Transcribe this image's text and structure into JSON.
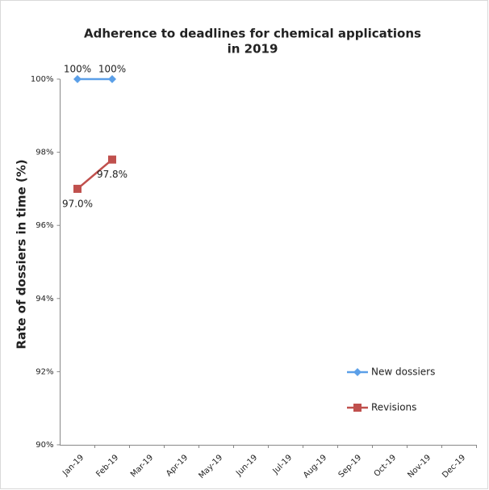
{
  "chart_data": {
    "type": "line",
    "title": [
      "Adherence to deadlines for chemical applications",
      "in 2019"
    ],
    "y_label": "Rate of dossiers in time (%)",
    "categories": [
      "Jan-19",
      "Feb-19",
      "Mar-19",
      "Apr-19",
      "May-19",
      "Jun-19",
      "Jul-19",
      "Aug-19",
      "Sep-19",
      "Oct-19",
      "Nov-19",
      "Dec-19"
    ],
    "series": [
      {
        "name": "New dossiers",
        "color": "#5b9fe8",
        "marker": "diamond",
        "values": [
          100,
          100,
          null,
          null,
          null,
          null,
          null,
          null,
          null,
          null,
          null,
          null
        ],
        "value_labels": [
          "100%",
          "100%",
          null,
          null,
          null,
          null,
          null,
          null,
          null,
          null,
          null,
          null
        ]
      },
      {
        "name": "Revisions",
        "color": "#c0504d",
        "marker": "square",
        "values": [
          97.0,
          97.8,
          null,
          null,
          null,
          null,
          null,
          null,
          null,
          null,
          null,
          null
        ],
        "value_labels": [
          "97.0%",
          "97.8%",
          null,
          null,
          null,
          null,
          null,
          null,
          null,
          null,
          null,
          null
        ]
      }
    ],
    "ylim": [
      90,
      100
    ],
    "yticks": [
      {
        "value": 90,
        "label": "90%"
      },
      {
        "value": 92,
        "label": "92%"
      },
      {
        "value": 94,
        "label": "94%"
      },
      {
        "value": 96,
        "label": "96%"
      },
      {
        "value": 98,
        "label": "98%"
      },
      {
        "value": 100,
        "label": "100%"
      }
    ],
    "grid": false
  }
}
